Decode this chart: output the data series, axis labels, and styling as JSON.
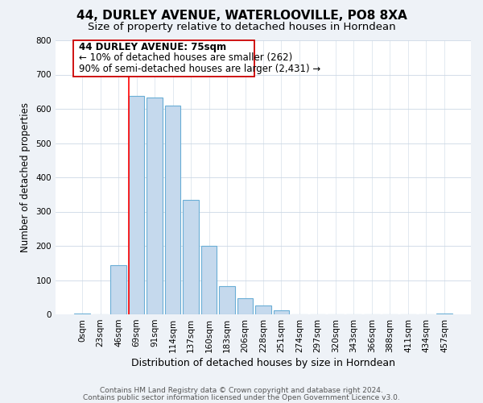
{
  "title": "44, DURLEY AVENUE, WATERLOOVILLE, PO8 8XA",
  "subtitle": "Size of property relative to detached houses in Horndean",
  "xlabel": "Distribution of detached houses by size in Horndean",
  "ylabel": "Number of detached properties",
  "bar_labels": [
    "0sqm",
    "23sqm",
    "46sqm",
    "69sqm",
    "91sqm",
    "114sqm",
    "137sqm",
    "160sqm",
    "183sqm",
    "206sqm",
    "228sqm",
    "251sqm",
    "274sqm",
    "297sqm",
    "320sqm",
    "343sqm",
    "366sqm",
    "388sqm",
    "411sqm",
    "434sqm",
    "457sqm"
  ],
  "bar_heights": [
    2,
    0,
    143,
    637,
    632,
    609,
    333,
    200,
    83,
    46,
    26,
    12,
    0,
    0,
    0,
    0,
    0,
    0,
    0,
    0,
    2
  ],
  "bar_color": "#c5d9ed",
  "bar_edge_color": "#6aaed6",
  "annotation_line1": "44 DURLEY AVENUE: 75sqm",
  "annotation_line2": "← 10% of detached houses are smaller (262)",
  "annotation_line3": "90% of semi-detached houses are larger (2,431) →",
  "red_line_x": 3,
  "ylim": [
    0,
    800
  ],
  "yticks": [
    0,
    100,
    200,
    300,
    400,
    500,
    600,
    700,
    800
  ],
  "background_color": "#eef2f7",
  "plot_bg_color": "#ffffff",
  "footer_line1": "Contains HM Land Registry data © Crown copyright and database right 2024.",
  "footer_line2": "Contains public sector information licensed under the Open Government Licence v3.0.",
  "title_fontsize": 11,
  "subtitle_fontsize": 9.5,
  "xlabel_fontsize": 9,
  "ylabel_fontsize": 8.5,
  "tick_fontsize": 7.5,
  "annotation_fontsize": 8.5,
  "footer_fontsize": 6.5
}
